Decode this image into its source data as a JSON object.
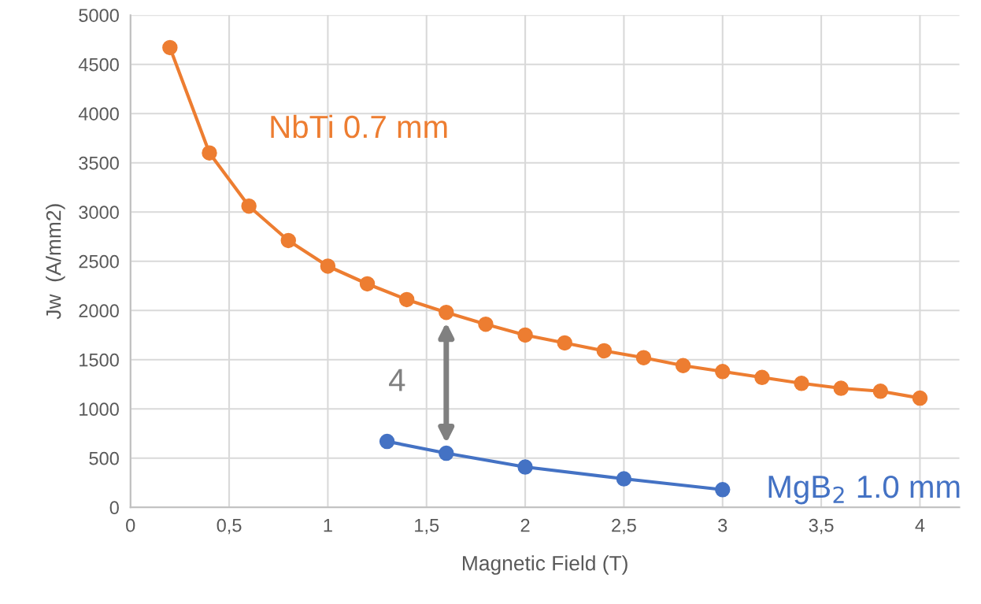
{
  "chart_data": {
    "type": "line",
    "xlabel": "Magnetic Field (T)",
    "ylabel": "Jw  (A/mm2)",
    "xlim": [
      0,
      4.2
    ],
    "xticks": [
      0,
      {
        "value": 0.5,
        "label": "0,5"
      },
      1,
      {
        "value": 1.5,
        "label": "1,5"
      },
      2,
      {
        "value": 2.5,
        "label": "2,5"
      },
      3,
      {
        "value": 3.5,
        "label": "3,5"
      },
      4
    ],
    "ylim": [
      0,
      5000
    ],
    "yticks": [
      0,
      500,
      1000,
      1500,
      2000,
      2500,
      3000,
      3500,
      4000,
      4500,
      5000
    ],
    "grid": true,
    "marker": "circle",
    "line_style": "solid",
    "series": [
      {
        "name": "NbTi 0.7 mm",
        "color": "#ed7d31",
        "x": [
          0.2,
          0.4,
          0.6,
          0.8,
          1.0,
          1.2,
          1.4,
          1.6,
          1.8,
          2.0,
          2.2,
          2.4,
          2.6,
          2.8,
          3.0,
          3.2,
          3.4,
          3.6,
          3.8,
          4.0
        ],
        "values": [
          4670,
          3600,
          3060,
          2710,
          2450,
          2270,
          2110,
          1980,
          1860,
          1750,
          1670,
          1590,
          1520,
          1440,
          1380,
          1320,
          1260,
          1210,
          1180,
          1110
        ]
      },
      {
        "name": "MgB$_{2}$ 1.0 mm",
        "color": "#4472c4",
        "x": [
          1.3,
          1.6,
          2.0,
          2.5,
          3.0
        ],
        "values": [
          670,
          550,
          410,
          290,
          180
        ]
      }
    ],
    "annotations": [
      {
        "text": "4",
        "x": 1.6,
        "y": 1980
      }
    ]
  }
}
